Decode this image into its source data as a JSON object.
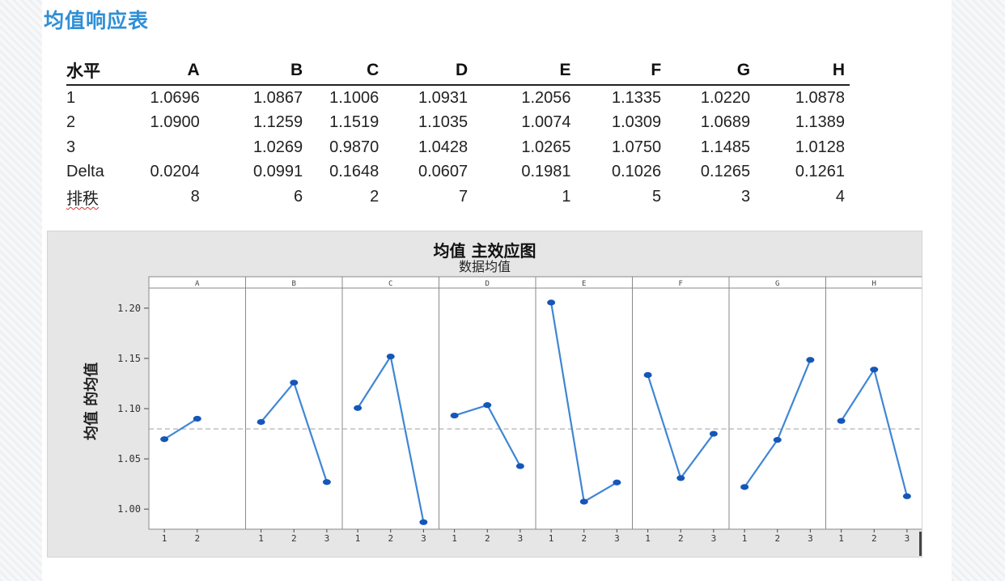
{
  "page_title": "均值响应表",
  "table": {
    "headers": [
      "水平",
      "A",
      "B",
      "C",
      "D",
      "E",
      "F",
      "G",
      "H"
    ],
    "rows": [
      [
        "1",
        "1.0696",
        "1.0867",
        "1.1006",
        "1.0931",
        "1.2056",
        "1.1335",
        "1.0220",
        "1.0878"
      ],
      [
        "2",
        "1.0900",
        "1.1259",
        "1.1519",
        "1.1035",
        "1.0074",
        "1.0309",
        "1.0689",
        "1.1389"
      ],
      [
        "3",
        "",
        "1.0269",
        "0.9870",
        "1.0428",
        "1.0265",
        "1.0750",
        "1.1485",
        "1.0128"
      ],
      [
        "Delta",
        "0.0204",
        "0.0991",
        "0.1648",
        "0.0607",
        "0.1981",
        "0.1026",
        "0.1265",
        "0.1261"
      ],
      [
        "排秩",
        "8",
        "6",
        "2",
        "7",
        "1",
        "5",
        "3",
        "4"
      ]
    ]
  },
  "chart_data": {
    "type": "line",
    "title": "均值 主效应图",
    "subtitle": "数据均值",
    "ylabel": "均值 的均值",
    "ylim": [
      0.98,
      1.22
    ],
    "yticks": [
      1.0,
      1.05,
      1.1,
      1.15,
      1.2
    ],
    "ytick_labels": [
      "1.00",
      "1.05",
      "1.10",
      "1.15",
      "1.20"
    ],
    "reference_line": 1.0798,
    "colors": {
      "line": "#3f86d4",
      "marker": "#1556b8",
      "reference": "#a9a9a9"
    },
    "panels": [
      {
        "name": "A",
        "x": [
          "1",
          "2"
        ],
        "values": [
          1.0696,
          1.09
        ]
      },
      {
        "name": "B",
        "x": [
          "1",
          "2",
          "3"
        ],
        "values": [
          1.0867,
          1.1259,
          1.0269
        ]
      },
      {
        "name": "C",
        "x": [
          "1",
          "2",
          "3"
        ],
        "values": [
          1.1006,
          1.1519,
          0.987
        ]
      },
      {
        "name": "D",
        "x": [
          "1",
          "2",
          "3"
        ],
        "values": [
          1.0931,
          1.1035,
          1.0428
        ]
      },
      {
        "name": "E",
        "x": [
          "1",
          "2",
          "3"
        ],
        "values": [
          1.2056,
          1.0074,
          1.0265
        ]
      },
      {
        "name": "F",
        "x": [
          "1",
          "2",
          "3"
        ],
        "values": [
          1.1335,
          1.0309,
          1.075
        ]
      },
      {
        "name": "G",
        "x": [
          "1",
          "2",
          "3"
        ],
        "values": [
          1.022,
          1.0689,
          1.1485
        ]
      },
      {
        "name": "H",
        "x": [
          "1",
          "2",
          "3"
        ],
        "values": [
          1.0878,
          1.1389,
          1.0128
        ]
      }
    ]
  }
}
